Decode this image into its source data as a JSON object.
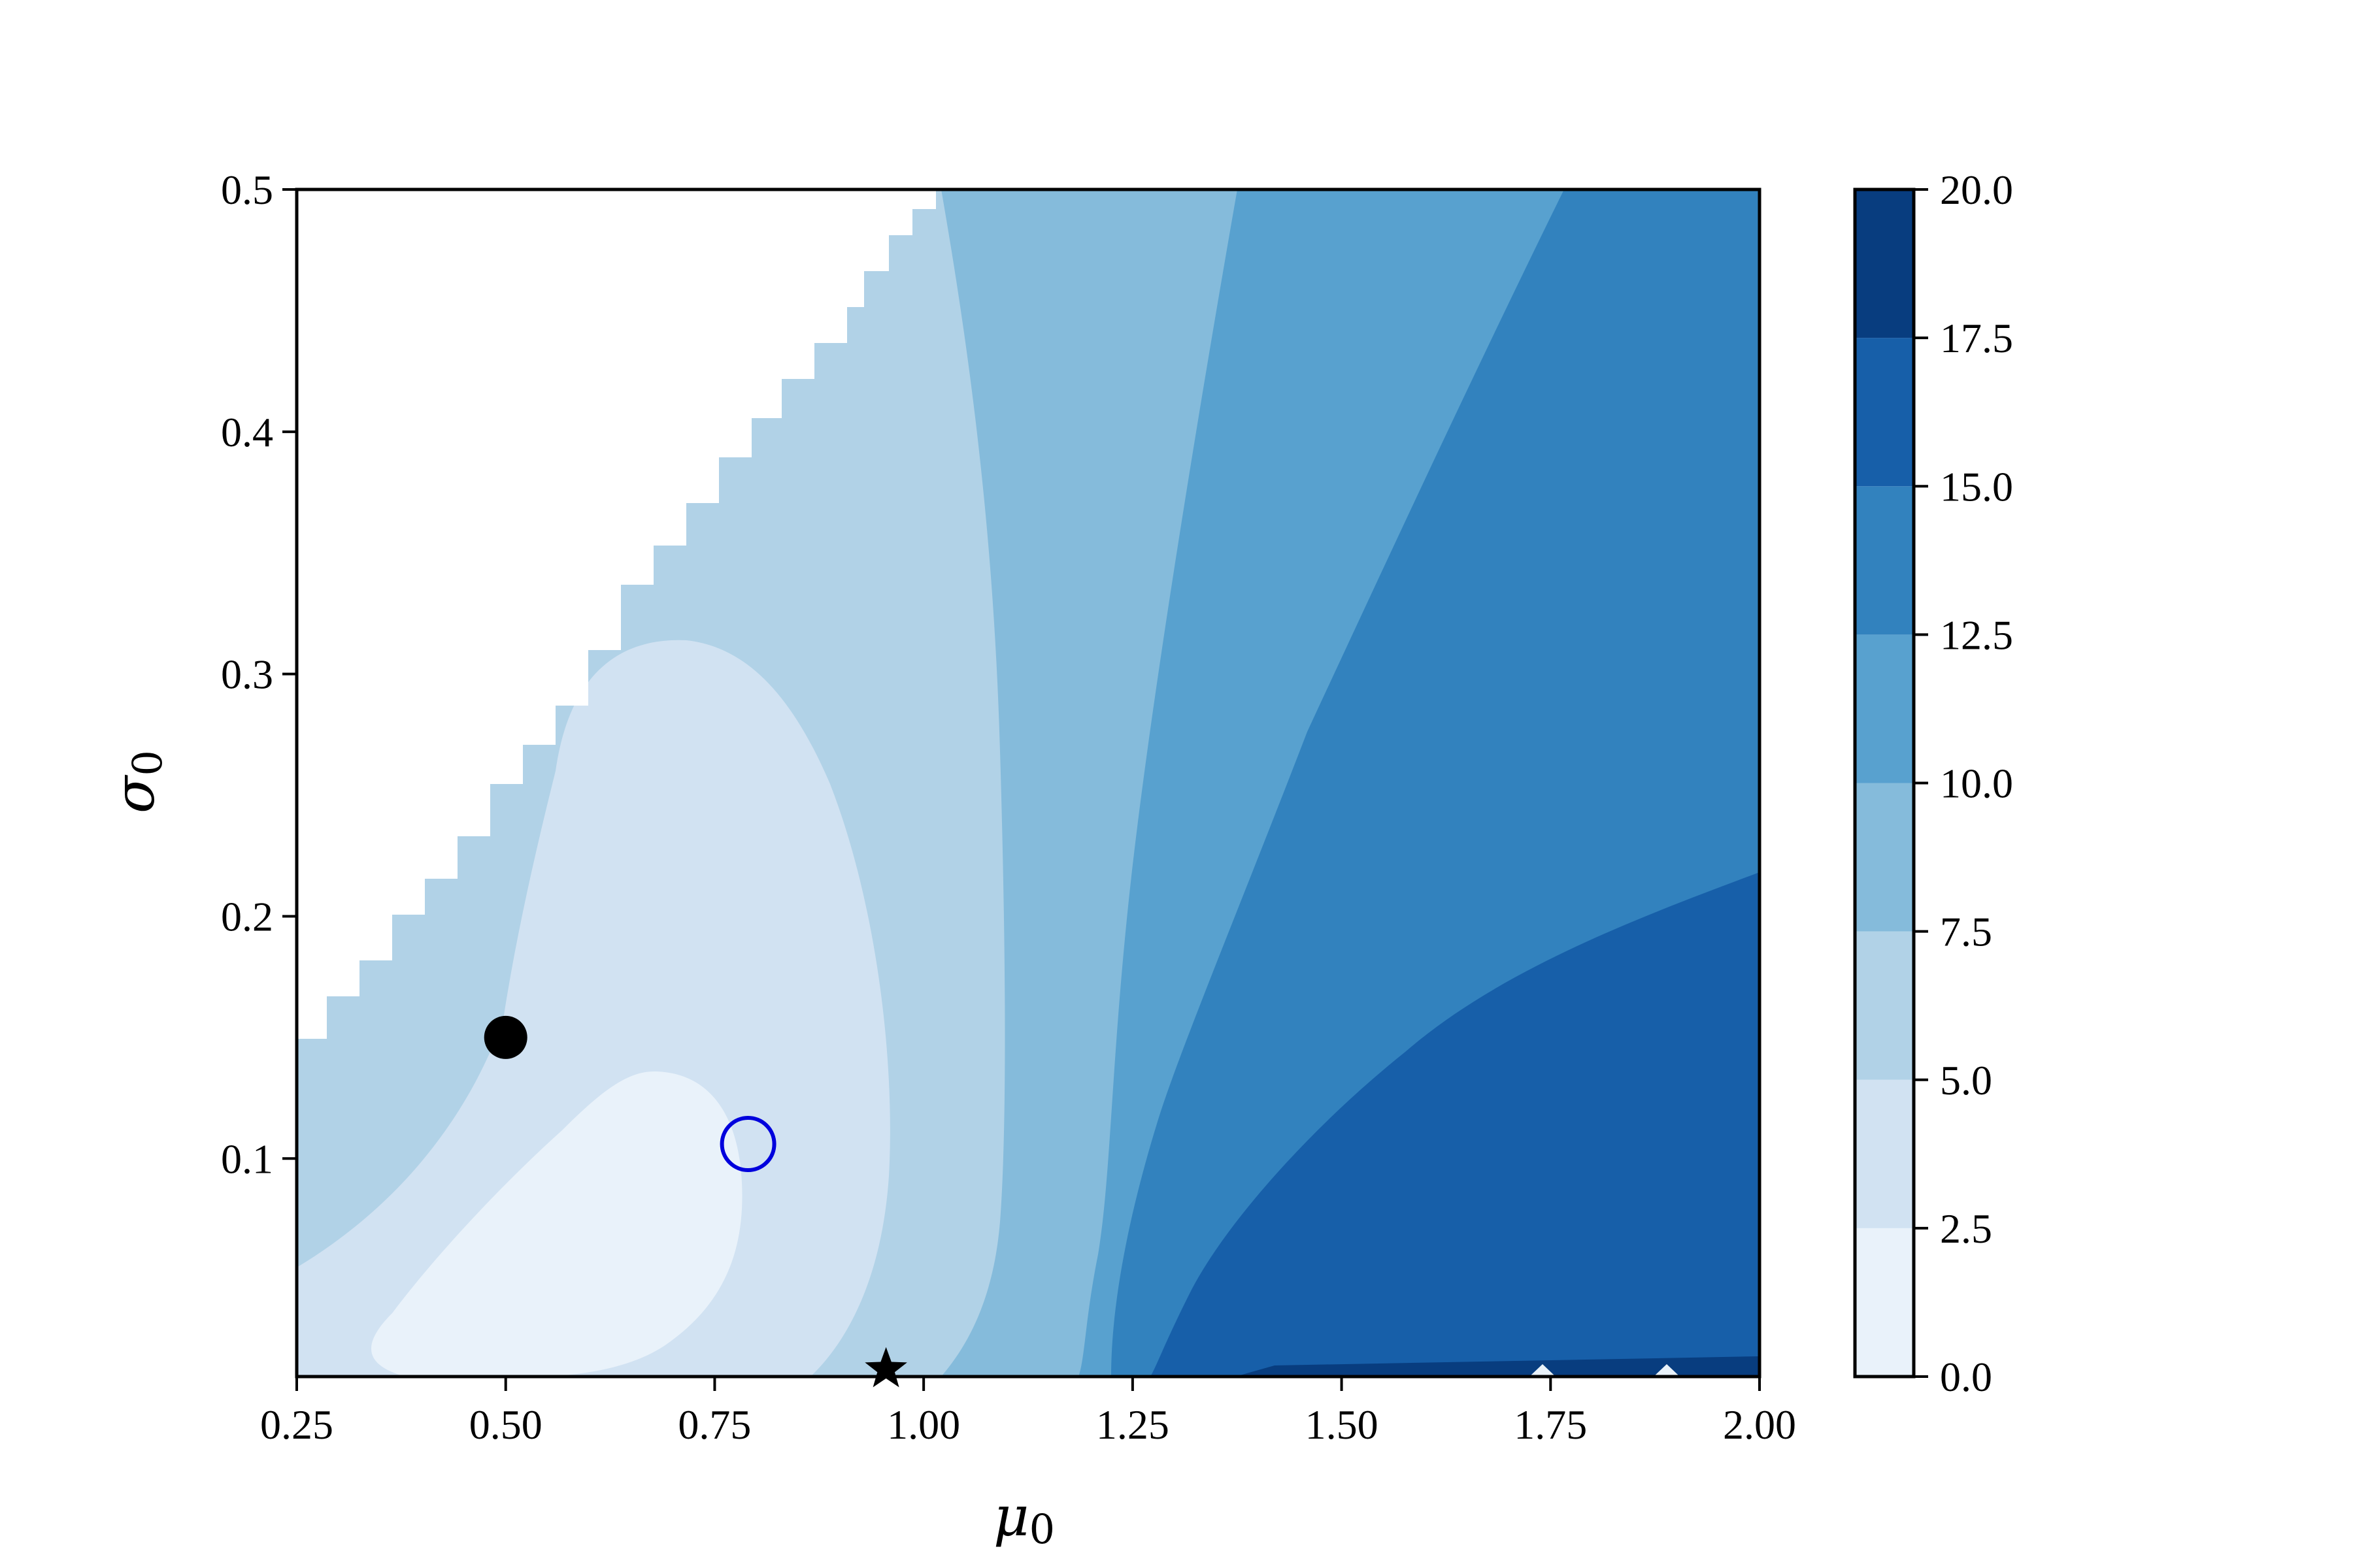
{
  "chart_data": {
    "type": "heatmap",
    "subtype": "filled-contour",
    "title": "",
    "xlabel": "μ",
    "xlabel_subscript": "0",
    "ylabel": "σ",
    "ylabel_subscript": "0",
    "xlim": [
      0.25,
      2.0
    ],
    "ylim": [
      0.01,
      0.5
    ],
    "xticks": [
      "0.25",
      "0.50",
      "0.75",
      "1.00",
      "1.25",
      "1.50",
      "1.75",
      "2.00"
    ],
    "yticks": [
      "0.1",
      "0.2",
      "0.3",
      "0.4",
      "0.5"
    ],
    "grid": false,
    "colormap": "Blues",
    "colorbar": {
      "levels": [
        0.0,
        2.5,
        5.0,
        7.5,
        10.0,
        12.5,
        15.0,
        17.5,
        20.0
      ],
      "tick_labels": [
        "0.0",
        "2.5",
        "5.0",
        "7.5",
        "10.0",
        "12.5",
        "15.0",
        "17.5",
        "20.0"
      ],
      "colors": [
        "#e9f2fa",
        "#d1e2f2",
        "#b1d2e7",
        "#85bbdb",
        "#58a1cf",
        "#3282be",
        "#175fa9",
        "#083d7f"
      ]
    },
    "invalid_region": "upper-left white area (no data)",
    "markers": [
      {
        "name": "filled circle",
        "shape": "circle-filled",
        "color": "#000000",
        "x": 0.5,
        "y": 0.15
      },
      {
        "name": "open circle",
        "shape": "circle-open",
        "color": "#0000dd",
        "x": 0.79,
        "y": 0.106
      },
      {
        "name": "star",
        "shape": "star",
        "color": "#000000",
        "x": 0.955,
        "y": 0.013
      }
    ]
  }
}
